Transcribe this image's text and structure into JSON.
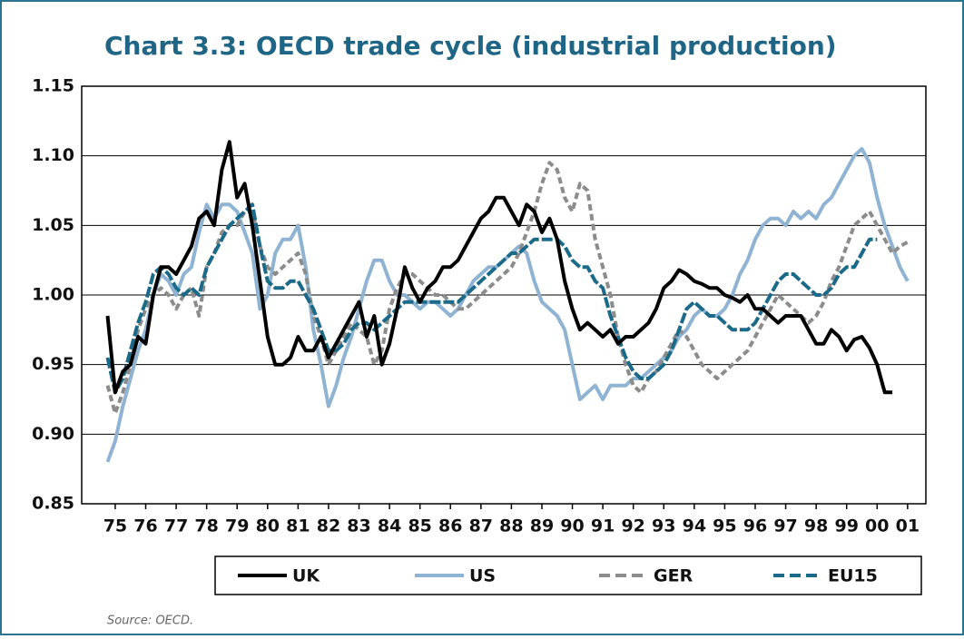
{
  "chart_data": {
    "type": "line",
    "title": "Chart 3.3: OECD trade cycle (industrial production)",
    "source": "Source: OECD.",
    "x": [
      1975.25,
      1975.5,
      1975.75,
      1976,
      1976.25,
      1976.5,
      1976.75,
      1977,
      1977.25,
      1977.5,
      1977.75,
      1978,
      1978.25,
      1978.5,
      1978.75,
      1979,
      1979.25,
      1979.5,
      1979.75,
      1980,
      1980.25,
      1980.5,
      1980.75,
      1981,
      1981.25,
      1981.5,
      1981.75,
      1982,
      1982.25,
      1982.5,
      1982.75,
      1983,
      1983.25,
      1983.5,
      1983.75,
      1984,
      1984.25,
      1984.5,
      1984.75,
      1985,
      1985.25,
      1985.5,
      1985.75,
      1986,
      1986.25,
      1986.5,
      1986.75,
      1987,
      1987.25,
      1987.5,
      1987.75,
      1988,
      1988.25,
      1988.5,
      1988.75,
      1989,
      1989.25,
      1989.5,
      1989.75,
      1990,
      1990.25,
      1990.5,
      1990.75,
      1991,
      1991.25,
      1991.5,
      1991.75,
      1992,
      1992.25,
      1992.5,
      1992.75,
      1993,
      1993.25,
      1993.5,
      1993.75,
      1994,
      1994.25,
      1994.5,
      1994.75,
      1995,
      1995.25,
      1995.5,
      1995.75,
      1996,
      1996.25,
      1996.5,
      1996.75,
      1997,
      1997.25,
      1997.5,
      1997.75,
      1998,
      1998.25,
      1998.5,
      1998.75,
      1999,
      1999.25,
      1999.5,
      1999.75,
      2000,
      2000.25,
      2000.5,
      2000.75,
      2001,
      2001.25,
      2001.5,
      2001.75
    ],
    "xlim": [
      1974.4,
      2002.1
    ],
    "xticks": [
      {
        "value": 1975.5,
        "label": "75"
      },
      {
        "value": 1976.5,
        "label": "76"
      },
      {
        "value": 1977.5,
        "label": "77"
      },
      {
        "value": 1978.5,
        "label": "78"
      },
      {
        "value": 1979.5,
        "label": "79"
      },
      {
        "value": 1980.5,
        "label": "80"
      },
      {
        "value": 1981.5,
        "label": "81"
      },
      {
        "value": 1982.5,
        "label": "82"
      },
      {
        "value": 1983.5,
        "label": "83"
      },
      {
        "value": 1984.5,
        "label": "84"
      },
      {
        "value": 1985.5,
        "label": "85"
      },
      {
        "value": 1986.5,
        "label": "86"
      },
      {
        "value": 1987.5,
        "label": "87"
      },
      {
        "value": 1988.5,
        "label": "88"
      },
      {
        "value": 1989.5,
        "label": "89"
      },
      {
        "value": 1990.5,
        "label": "90"
      },
      {
        "value": 1991.5,
        "label": "91"
      },
      {
        "value": 1992.5,
        "label": "92"
      },
      {
        "value": 1993.5,
        "label": "93"
      },
      {
        "value": 1994.5,
        "label": "94"
      },
      {
        "value": 1995.5,
        "label": "95"
      },
      {
        "value": 1996.5,
        "label": "96"
      },
      {
        "value": 1997.5,
        "label": "97"
      },
      {
        "value": 1998.5,
        "label": "98"
      },
      {
        "value": 1999.5,
        "label": "99"
      },
      {
        "value": 2000.5,
        "label": "00"
      },
      {
        "value": 2001.5,
        "label": "01"
      }
    ],
    "ylim": [
      0.85,
      1.15
    ],
    "yticks": [
      0.85,
      {
        "value": 0.9,
        "label": "0.90"
      },
      0.95,
      {
        "value": 1,
        "label": "1.00"
      },
      1.05,
      {
        "value": 1.1,
        "label": "1.10"
      },
      1.15
    ],
    "grid": true,
    "series": [
      {
        "name": "UK",
        "color": "#000000",
        "dash": "none",
        "values": [
          0.985,
          0.93,
          0.945,
          0.95,
          0.97,
          0.965,
          1.0,
          1.02,
          1.02,
          1.015,
          1.025,
          1.035,
          1.055,
          1.06,
          1.05,
          1.09,
          1.11,
          1.07,
          1.08,
          1.05,
          1.01,
          0.97,
          0.95,
          0.95,
          0.955,
          0.97,
          0.96,
          0.96,
          0.97,
          0.955,
          0.965,
          0.975,
          0.985,
          0.995,
          0.97,
          0.985,
          0.95,
          0.965,
          0.99,
          1.02,
          1.005,
          0.995,
          1.005,
          1.01,
          1.02,
          1.02,
          1.025,
          1.035,
          1.045,
          1.055,
          1.06,
          1.07,
          1.07,
          1.06,
          1.05,
          1.065,
          1.06,
          1.045,
          1.055,
          1.04,
          1.01,
          0.99,
          0.975,
          0.98,
          0.975,
          0.97,
          0.975,
          0.965,
          0.97,
          0.97,
          0.975,
          0.98,
          0.99,
          1.005,
          1.01,
          1.018,
          1.015,
          1.01,
          1.008,
          1.005,
          1.005,
          1.0,
          0.998,
          0.995,
          1.0,
          0.99,
          0.99,
          0.985,
          0.98,
          0.985,
          0.985,
          0.985,
          0.975,
          0.965,
          0.965,
          0.975,
          0.97,
          0.96,
          0.968,
          0.97,
          0.962,
          0.95,
          0.93,
          0.93,
          null,
          null,
          null
        ]
      },
      {
        "name": "US",
        "color": "#8fb3d2",
        "dash": "none",
        "values": [
          0.88,
          0.895,
          0.92,
          0.94,
          0.96,
          0.975,
          1.0,
          1.015,
          1.01,
          1.0,
          1.015,
          1.02,
          1.045,
          1.065,
          1.055,
          1.065,
          1.065,
          1.06,
          1.045,
          1.03,
          0.99,
          1.0,
          1.03,
          1.04,
          1.04,
          1.05,
          1.02,
          0.975,
          0.95,
          0.92,
          0.935,
          0.955,
          0.97,
          0.99,
          1.01,
          1.025,
          1.025,
          1.01,
          1.0,
          1.0,
          0.995,
          0.99,
          0.995,
          0.995,
          0.99,
          0.985,
          0.99,
          1.0,
          1.01,
          1.015,
          1.02,
          1.02,
          1.025,
          1.03,
          1.035,
          1.03,
          1.01,
          0.995,
          0.99,
          0.985,
          0.975,
          0.95,
          0.925,
          0.93,
          0.935,
          0.925,
          0.935,
          0.935,
          0.935,
          0.94,
          0.94,
          0.945,
          0.95,
          0.955,
          0.96,
          0.97,
          0.975,
          0.985,
          0.99,
          0.985,
          0.985,
          0.99,
          1.0,
          1.015,
          1.025,
          1.04,
          1.05,
          1.055,
          1.055,
          1.05,
          1.06,
          1.055,
          1.06,
          1.055,
          1.065,
          1.07,
          1.08,
          1.09,
          1.1,
          1.105,
          1.095,
          1.07,
          1.05,
          1.035,
          1.02,
          1.01,
          null
        ]
      },
      {
        "name": "GER",
        "color": "#8c8c8c",
        "dash": "7 4",
        "values": [
          0.935,
          0.915,
          0.93,
          0.95,
          0.975,
          0.99,
          1.0,
          1.005,
          1.0,
          0.99,
          1.0,
          1.005,
          0.985,
          1.02,
          1.03,
          1.045,
          1.05,
          1.05,
          1.06,
          1.06,
          1.035,
          1.02,
          1.015,
          1.02,
          1.025,
          1.03,
          1.015,
          0.985,
          0.97,
          0.95,
          0.96,
          0.97,
          0.98,
          0.975,
          0.97,
          0.95,
          0.96,
          0.99,
          1.005,
          1.015,
          1.015,
          1.01,
          1.005,
          1.0,
          1.0,
          0.995,
          0.99,
          0.99,
          0.995,
          1.0,
          1.005,
          1.01,
          1.015,
          1.02,
          1.03,
          1.045,
          1.06,
          1.08,
          1.095,
          1.09,
          1.07,
          1.06,
          1.08,
          1.075,
          1.04,
          1.02,
          1.0,
          0.97,
          0.95,
          0.935,
          0.93,
          0.94,
          0.945,
          0.955,
          0.965,
          0.975,
          0.97,
          0.96,
          0.95,
          0.945,
          0.94,
          0.945,
          0.95,
          0.955,
          0.96,
          0.97,
          0.98,
          0.99,
          1.0,
          0.995,
          0.99,
          0.985,
          0.98,
          0.985,
          0.995,
          1.01,
          1.02,
          1.035,
          1.05,
          1.055,
          1.06,
          1.05,
          1.04,
          1.03,
          1.035,
          1.038,
          null
        ]
      },
      {
        "name": "EU15",
        "color": "#1b6a89",
        "dash": "12 3",
        "values": [
          0.955,
          0.93,
          0.94,
          0.96,
          0.98,
          0.995,
          1.015,
          1.02,
          1.015,
          1.005,
          1.0,
          1.005,
          1.0,
          1.02,
          1.03,
          1.04,
          1.05,
          1.055,
          1.06,
          1.065,
          1.035,
          1.01,
          1.005,
          1.005,
          1.01,
          1.01,
          1.0,
          0.99,
          0.975,
          0.96,
          0.96,
          0.965,
          0.975,
          0.98,
          0.98,
          0.975,
          0.98,
          0.985,
          0.99,
          0.995,
          0.995,
          0.995,
          0.995,
          0.995,
          0.995,
          0.995,
          0.995,
          1.0,
          1.005,
          1.01,
          1.015,
          1.02,
          1.025,
          1.03,
          1.03,
          1.035,
          1.04,
          1.04,
          1.04,
          1.04,
          1.035,
          1.025,
          1.02,
          1.02,
          1.01,
          1.005,
          0.985,
          0.97,
          0.955,
          0.945,
          0.94,
          0.94,
          0.945,
          0.95,
          0.96,
          0.975,
          0.99,
          0.995,
          0.99,
          0.985,
          0.985,
          0.98,
          0.975,
          0.975,
          0.975,
          0.98,
          0.99,
          1.0,
          1.01,
          1.015,
          1.015,
          1.01,
          1.005,
          1.0,
          1.0,
          1.005,
          1.015,
          1.02,
          1.02,
          1.03,
          1.04,
          1.04,
          null,
          null,
          null,
          null,
          null
        ]
      }
    ]
  }
}
